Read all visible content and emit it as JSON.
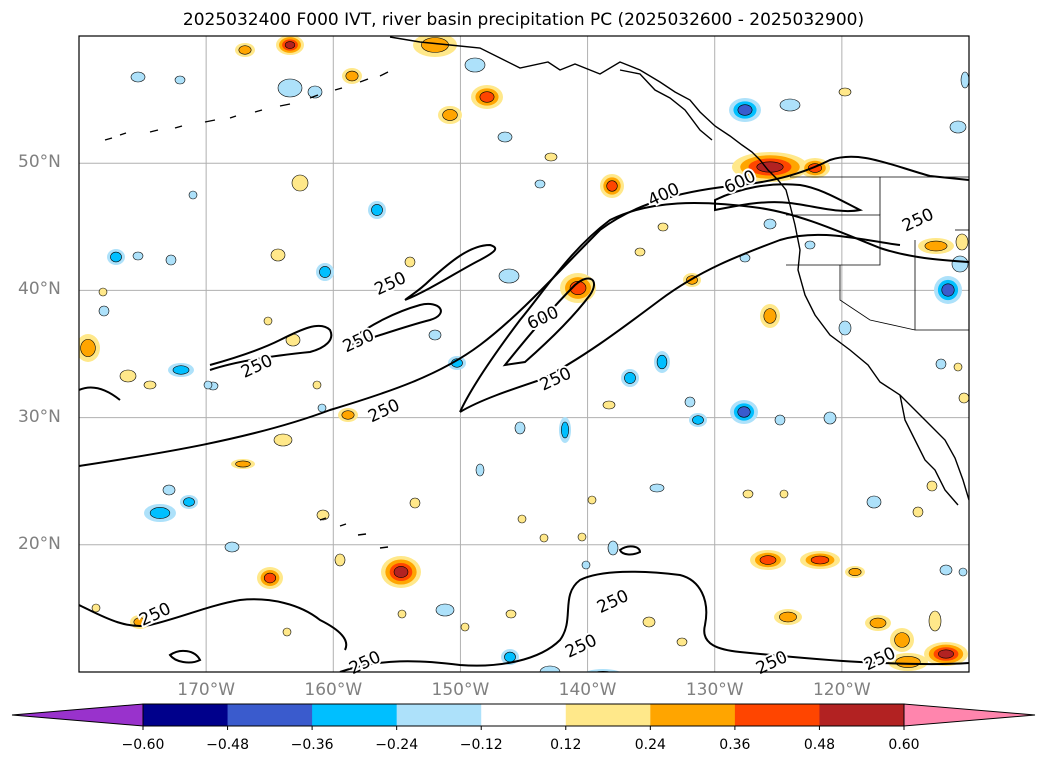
{
  "title": "2025032400 F000 IVT, river basin precipitation PC (2025032600 - 2025032900)",
  "map": {
    "projection": "PlateCarree",
    "extent": {
      "lon_min": -180,
      "lon_max": -110,
      "lat_min": 10,
      "lat_max": 60
    },
    "grid": true,
    "lat_labels": [
      "50°N",
      "40°N",
      "30°N",
      "20°N"
    ],
    "lat_values": [
      50,
      40,
      30,
      20
    ],
    "lon_labels": [
      "170°W",
      "160°W",
      "150°W",
      "140°W",
      "130°W",
      "120°W"
    ],
    "lon_values": [
      -170,
      -160,
      -150,
      -140,
      -130,
      -120
    ],
    "ivt_contour_levels": [
      250,
      400,
      600
    ],
    "ivt_contour_labels": [
      {
        "text": "250",
        "lon": -166,
        "lat": 34
      },
      {
        "text": "250",
        "lon": -158,
        "lat": 36
      },
      {
        "text": "250",
        "lon": -156,
        "lat": 30.5
      },
      {
        "text": "250",
        "lon": -155.5,
        "lat": 40.5
      },
      {
        "text": "250",
        "lon": -142.5,
        "lat": 33
      },
      {
        "text": "250",
        "lon": -114,
        "lat": 45.5
      },
      {
        "text": "250",
        "lon": -174,
        "lat": 14.5
      },
      {
        "text": "250",
        "lon": -157.5,
        "lat": 10.7
      },
      {
        "text": "250",
        "lon": -138,
        "lat": 15.5
      },
      {
        "text": "250",
        "lon": -140.5,
        "lat": 12
      },
      {
        "text": "250",
        "lon": -125.5,
        "lat": 10.7
      },
      {
        "text": "250",
        "lon": -117,
        "lat": 11
      },
      {
        "text": "400",
        "lon": -134,
        "lat": 47.5
      },
      {
        "text": "600",
        "lon": -143.5,
        "lat": 37.8
      },
      {
        "text": "600",
        "lon": -128,
        "lat": 48.5
      }
    ]
  },
  "colorbar": {
    "extend": "both",
    "tick_labels": [
      "−0.60",
      "−0.48",
      "−0.36",
      "−0.24",
      "−0.12",
      "0.12",
      "0.24",
      "0.36",
      "0.48",
      "0.60"
    ],
    "bounds": [
      -0.6,
      -0.48,
      -0.36,
      -0.24,
      -0.12,
      0.12,
      0.24,
      0.36,
      0.48,
      0.6
    ],
    "colors": {
      "under": "#9932CC",
      "bins": [
        "#00008B",
        "#3A5BCD",
        "#00BFFF",
        "#ADE1FA",
        "#FFFFFF",
        "#FFE88A",
        "#FFA500",
        "#FF4500",
        "#B22222"
      ],
      "over": "#FF85AD"
    }
  },
  "chart_data": {
    "type": "heatmap",
    "title": "2025032400 F000 IVT, river basin precipitation PC (2025032600 - 2025032900)",
    "colorbar_ticks": [
      -0.6,
      -0.48,
      -0.36,
      -0.24,
      -0.12,
      0.12,
      0.24,
      0.36,
      0.48,
      0.6
    ],
    "ivt_contours": [
      250,
      400,
      600
    ],
    "lon_range": [
      -180,
      -110
    ],
    "lat_range": [
      10,
      60
    ]
  }
}
